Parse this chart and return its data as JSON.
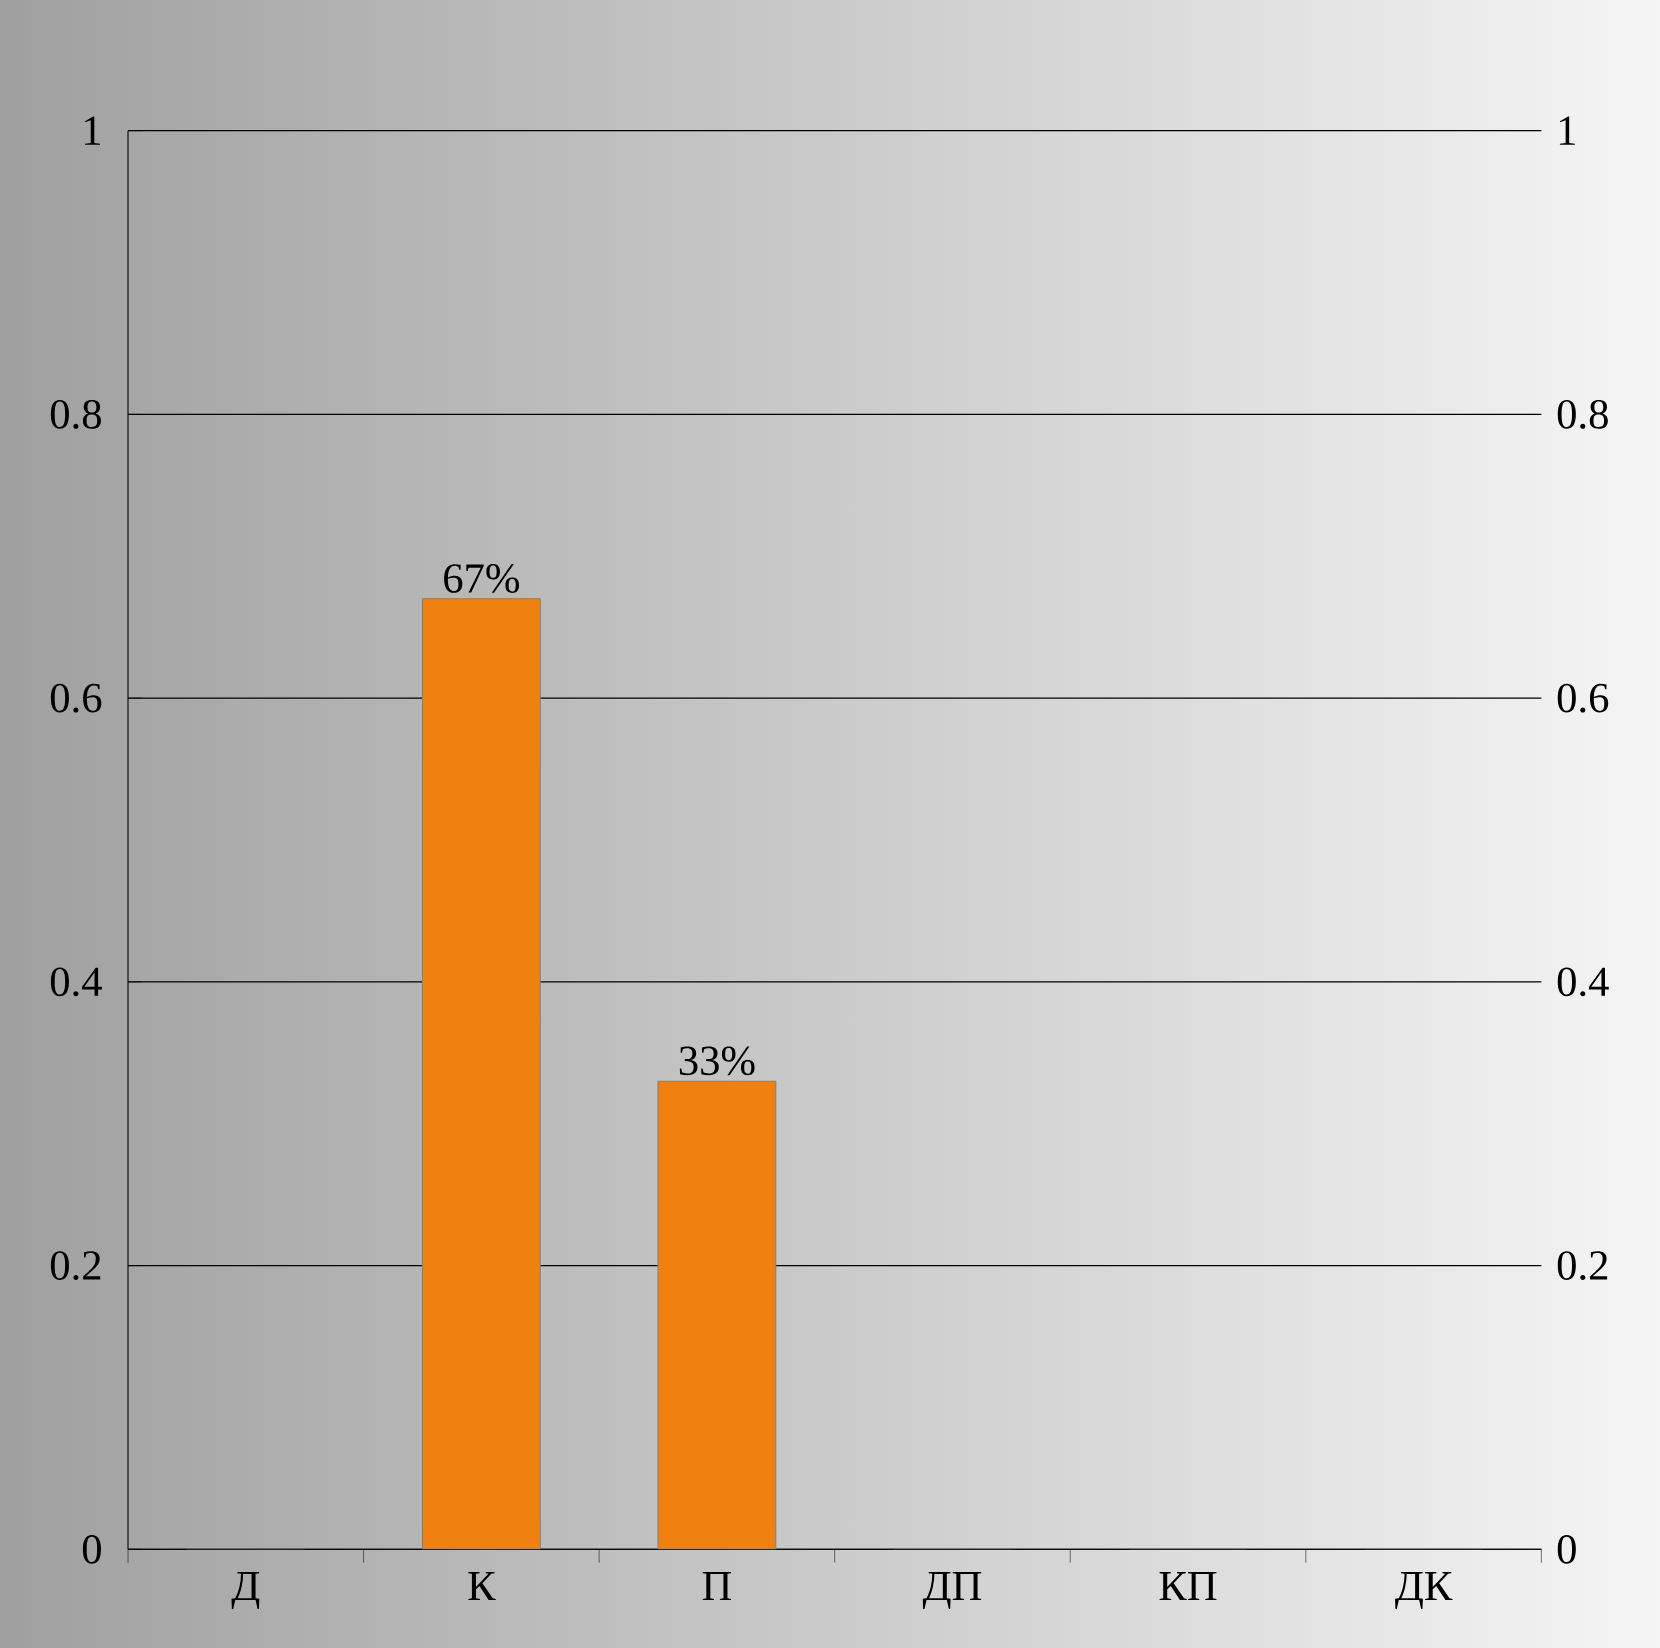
{
  "chart_data": {
    "type": "bar",
    "categories": [
      "Д",
      "К",
      "П",
      "ДП",
      "КП",
      "ДК"
    ],
    "values": [
      0,
      0.67,
      0.33,
      0,
      0,
      0
    ],
    "value_labels": [
      null,
      "67%",
      "33%",
      null,
      null,
      null
    ],
    "color": "#f08010",
    "ylim": [
      0,
      1
    ],
    "yticks": [
      0,
      0.2,
      0.4,
      0.6,
      0.8,
      1
    ],
    "y2lim": [
      0,
      1
    ],
    "y2ticks": [
      0,
      0.2,
      0.4,
      0.6,
      0.8,
      1
    ],
    "grid": "y"
  }
}
